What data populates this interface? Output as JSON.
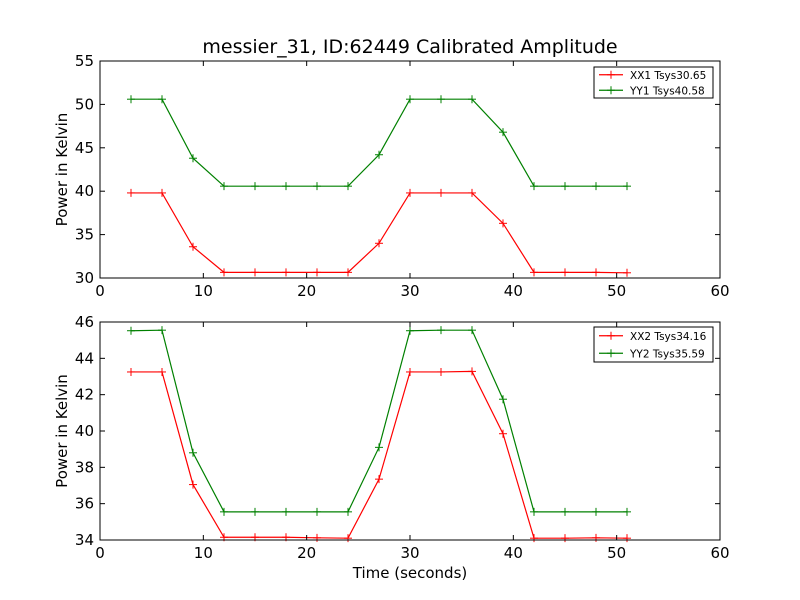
{
  "title": "messier_31, ID:62449 Calibrated Amplitude",
  "chart_data": [
    {
      "type": "line",
      "ylabel": "Power in Kelvin",
      "xlabel": "",
      "xlim": [
        0,
        60
      ],
      "ylim": [
        30,
        55
      ],
      "x_ticks": [
        0,
        10,
        20,
        30,
        40,
        50,
        60
      ],
      "y_ticks": [
        30,
        35,
        40,
        45,
        50,
        55
      ],
      "grid": false,
      "legend_position": "top-right",
      "x": [
        3,
        6,
        9,
        12,
        15,
        18,
        21,
        24,
        27,
        30,
        33,
        36,
        39,
        42,
        45,
        48,
        51
      ],
      "series": [
        {
          "name": "XX1 Tsys30.65",
          "color": "#ff0000",
          "marker": "plus",
          "values": [
            39.8,
            39.8,
            33.6,
            30.65,
            30.65,
            30.65,
            30.65,
            30.65,
            34.0,
            39.8,
            39.8,
            39.8,
            36.3,
            30.65,
            30.65,
            30.65,
            30.6
          ]
        },
        {
          "name": "YY1 Tsys40.58",
          "color": "#008000",
          "marker": "plus",
          "values": [
            50.6,
            50.6,
            43.8,
            40.58,
            40.58,
            40.58,
            40.58,
            40.58,
            44.2,
            50.6,
            50.6,
            50.6,
            46.8,
            40.58,
            40.58,
            40.58,
            40.58
          ]
        }
      ]
    },
    {
      "type": "line",
      "ylabel": "Power in Kelvin",
      "xlabel": "Time (seconds)",
      "xlim": [
        0,
        60
      ],
      "ylim": [
        34,
        46
      ],
      "x_ticks": [
        0,
        10,
        20,
        30,
        40,
        50,
        60
      ],
      "y_ticks": [
        34,
        36,
        38,
        40,
        42,
        44,
        46
      ],
      "grid": false,
      "legend_position": "top-right",
      "x": [
        3,
        6,
        9,
        12,
        15,
        18,
        21,
        24,
        27,
        30,
        33,
        36,
        39,
        42,
        45,
        48,
        51
      ],
      "series": [
        {
          "name": "XX2 Tsys34.16",
          "color": "#ff0000",
          "marker": "plus",
          "values": [
            43.25,
            43.25,
            37.05,
            34.15,
            34.15,
            34.15,
            34.12,
            34.1,
            37.35,
            43.25,
            43.25,
            43.28,
            39.85,
            34.1,
            34.1,
            34.12,
            34.1
          ]
        },
        {
          "name": "YY2 Tsys35.59",
          "color": "#008000",
          "marker": "plus",
          "values": [
            45.52,
            45.55,
            38.8,
            35.55,
            35.55,
            35.55,
            35.55,
            35.55,
            39.1,
            45.52,
            45.55,
            45.55,
            41.75,
            35.55,
            35.55,
            35.55,
            35.55
          ]
        }
      ]
    }
  ]
}
